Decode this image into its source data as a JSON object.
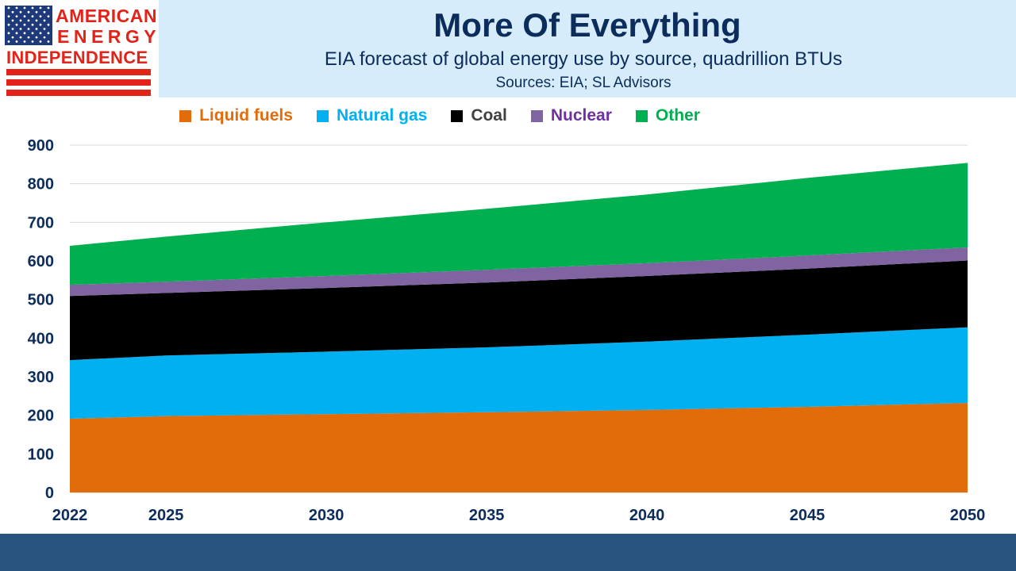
{
  "header": {
    "logo_lines": [
      "AMERICAN",
      "ENERGY",
      "INDEPENDENCE"
    ],
    "title": "More Of Everything",
    "subtitle": "EIA forecast of global energy use by source, quadrillion  BTUs",
    "source": "Sources: EIA; SL Advisors"
  },
  "colors": {
    "header_band": "#d6ecfa",
    "title_text": "#0c2d5b",
    "footer_bar": "#2a5480",
    "logo_red": "#e2231a",
    "logo_blue": "#1f3a7a"
  },
  "chart_data": {
    "type": "area",
    "stacked": true,
    "x": [
      2022,
      2025,
      2030,
      2035,
      2040,
      2045,
      2050
    ],
    "x_ticks": [
      "2022",
      "2025",
      "2030",
      "2035",
      "2040",
      "2045",
      "2050"
    ],
    "y_ticks": [
      "0",
      "100",
      "200",
      "300",
      "400",
      "500",
      "600",
      "700",
      "800",
      "900"
    ],
    "ylim": [
      0,
      900
    ],
    "grid": true,
    "legend_position": "top",
    "title": "",
    "xlabel": "",
    "ylabel": "",
    "series": [
      {
        "name": "Liquid fuels",
        "color": "#e36c0a",
        "values": [
          191,
          198,
          203,
          208,
          214,
          222,
          232
        ]
      },
      {
        "name": "Natural gas",
        "color": "#00b0f0",
        "values": [
          152,
          157,
          162,
          168,
          177,
          187,
          196
        ]
      },
      {
        "name": "Coal",
        "color": "#000000",
        "values": [
          166,
          162,
          165,
          168,
          170,
          171,
          173
        ]
      },
      {
        "name": "Nuclear",
        "color": "#8064a2",
        "values": [
          29,
          29,
          31,
          33,
          33,
          34,
          34
        ]
      },
      {
        "name": "Other",
        "color": "#00b050",
        "values": [
          101,
          117,
          139,
          158,
          178,
          201,
          219
        ]
      }
    ]
  }
}
